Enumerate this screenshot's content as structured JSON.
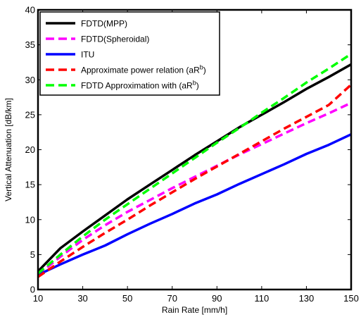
{
  "chart_data": {
    "type": "line",
    "title": "",
    "xlabel": "Rain Rate [mm/h]",
    "ylabel": "Vertical Attenuation [dB/km]",
    "xlim": [
      10,
      150
    ],
    "ylim": [
      0,
      40
    ],
    "xticks": [
      10,
      30,
      50,
      70,
      90,
      110,
      130,
      150
    ],
    "yticks": [
      0,
      5,
      10,
      15,
      20,
      25,
      30,
      35,
      40
    ],
    "grid": false,
    "legend_position": "top-left",
    "x": [
      10,
      20,
      30,
      40,
      50,
      60,
      70,
      80,
      90,
      100,
      110,
      120,
      130,
      140,
      150
    ],
    "series": [
      {
        "name": "FDTD(MPP)",
        "color": "#000000",
        "dash": "solid",
        "values": [
          2.6,
          5.9,
          8.3,
          10.6,
          12.9,
          15.0,
          17.1,
          19.2,
          21.2,
          23.2,
          25.0,
          26.8,
          28.7,
          30.4,
          32.2
        ]
      },
      {
        "name": "FDTD(Spheroidal)",
        "color": "#ff00ff",
        "dash": "dashed",
        "values": [
          2.1,
          4.7,
          7.1,
          9.2,
          11.1,
          12.8,
          14.5,
          16.1,
          17.7,
          19.3,
          20.8,
          22.3,
          23.8,
          25.2,
          26.7
        ]
      },
      {
        "name": "ITU",
        "color": "#0000ff",
        "dash": "solid",
        "values": [
          2.1,
          3.6,
          5.0,
          6.3,
          7.9,
          9.4,
          10.8,
          12.3,
          13.6,
          15.1,
          16.5,
          17.9,
          19.4,
          20.7,
          22.2
        ]
      },
      {
        "name": "Approximate power relation (aR",
        "name_sup": "b",
        "name_suffix": ")",
        "color": "#ff0000",
        "dash": "dashed",
        "values": [
          1.8,
          4.0,
          6.1,
          8.1,
          10.0,
          12.0,
          13.9,
          15.8,
          17.6,
          19.4,
          21.2,
          23.0,
          24.7,
          26.4,
          29.3
        ]
      },
      {
        "name": "FDTD Approximation with (aR",
        "name_sup": "b",
        "name_suffix": ")",
        "color": "#00ff00",
        "dash": "dashed",
        "values": [
          2.3,
          5.0,
          7.6,
          10.0,
          12.2,
          14.4,
          16.6,
          18.8,
          21.0,
          23.1,
          25.3,
          27.4,
          29.6,
          31.6,
          33.7
        ]
      }
    ]
  }
}
